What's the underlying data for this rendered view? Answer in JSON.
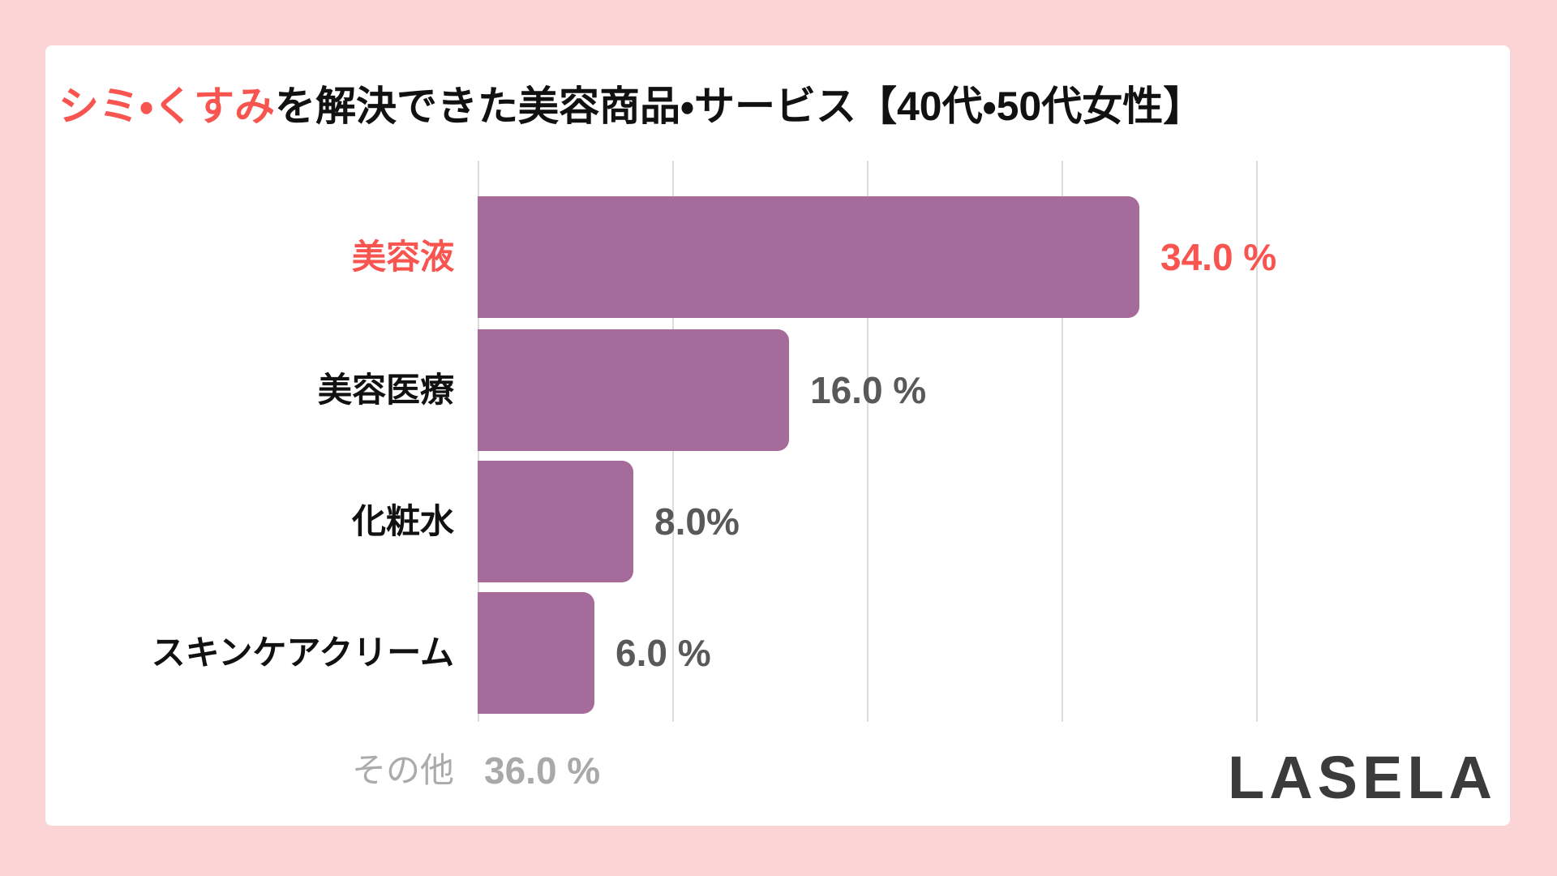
{
  "frame": {
    "background_color": "#FBD5D5",
    "card_color": "#FFFFFF"
  },
  "title": {
    "highlight": "シミ・くすみ",
    "rest": "を解決できた美容商品・サービス【40代・50代女性】",
    "full": "シミ・くすみを解決できた美容商品・サービス【40代・50代女性】"
  },
  "palette": {
    "accent_red": "#F85450",
    "bar_purple": "#A56C9B",
    "label_black": "#111111",
    "value_gray": "#595959",
    "muted_gray": "#ABABAB",
    "muted_value_gray": "#A9A9A9",
    "gridline_gray": "#DCDCDC",
    "logo_charcoal": "#3B3B3B"
  },
  "chart_data": {
    "type": "bar",
    "orientation": "horizontal",
    "title": "シミ・くすみを解決できた美容商品・サービス【40代・50代女性】",
    "categories": [
      "美容液",
      "美容医療",
      "化粧水",
      "スキンケアクリーム",
      "その他"
    ],
    "values": [
      34.0,
      16.0,
      8.0,
      6.0,
      36.0
    ],
    "xlabel": "",
    "ylabel": "",
    "xlim": [
      0,
      40
    ],
    "gridline_step": 10,
    "grid": true,
    "legend": false,
    "rows": [
      {
        "label": "美容液",
        "value": 34.0,
        "value_label": "34.0 %",
        "bar": true,
        "emphasis": "highlight"
      },
      {
        "label": "美容医療",
        "value": 16.0,
        "value_label": "16.0 %",
        "bar": true,
        "emphasis": "normal"
      },
      {
        "label": "化粧水",
        "value": 8.0,
        "value_label": "8.0%",
        "bar": true,
        "emphasis": "normal"
      },
      {
        "label": "スキンケアクリーム",
        "value": 6.0,
        "value_label": "6.0 %",
        "bar": true,
        "emphasis": "normal"
      },
      {
        "label": "その他",
        "value": 36.0,
        "value_label": "36.0 %",
        "bar": false,
        "emphasis": "muted"
      }
    ]
  },
  "logo": {
    "text": "LASELA"
  }
}
